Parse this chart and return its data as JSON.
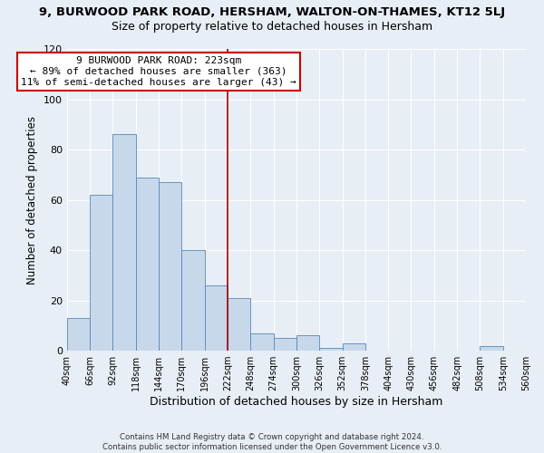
{
  "title": "9, BURWOOD PARK ROAD, HERSHAM, WALTON-ON-THAMES, KT12 5LJ",
  "subtitle": "Size of property relative to detached houses in Hersham",
  "xlabel": "Distribution of detached houses by size in Hersham",
  "ylabel": "Number of detached properties",
  "bar_color": "#c8d8eb",
  "bar_edge_color": "#5588bb",
  "bg_color": "#e8eef5",
  "annotation_text": "9 BURWOOD PARK ROAD: 223sqm\n← 89% of detached houses are smaller (363)\n11% of semi-detached houses are larger (43) →",
  "annotation_box_color": "#ffffff",
  "annotation_box_edge": "#cc0000",
  "vline_x": 222,
  "vline_color": "#aa0000",
  "bins": [
    40,
    66,
    92,
    118,
    144,
    170,
    196,
    222,
    248,
    274,
    300,
    326,
    352,
    378,
    404,
    430,
    456,
    482,
    508,
    534,
    560
  ],
  "counts": [
    13,
    62,
    86,
    69,
    67,
    40,
    26,
    21,
    7,
    5,
    6,
    1,
    3,
    0,
    0,
    0,
    0,
    0,
    2,
    0
  ],
  "ylim": [
    0,
    120
  ],
  "yticks": [
    0,
    20,
    40,
    60,
    80,
    100,
    120
  ],
  "footer": "Contains HM Land Registry data © Crown copyright and database right 2024.\nContains public sector information licensed under the Open Government Licence v3.0.",
  "grid_color": "#ffffff",
  "title_fontsize": 9.5,
  "subtitle_fontsize": 9,
  "tick_fontsize": 7,
  "ylabel_fontsize": 8.5,
  "xlabel_fontsize": 9
}
